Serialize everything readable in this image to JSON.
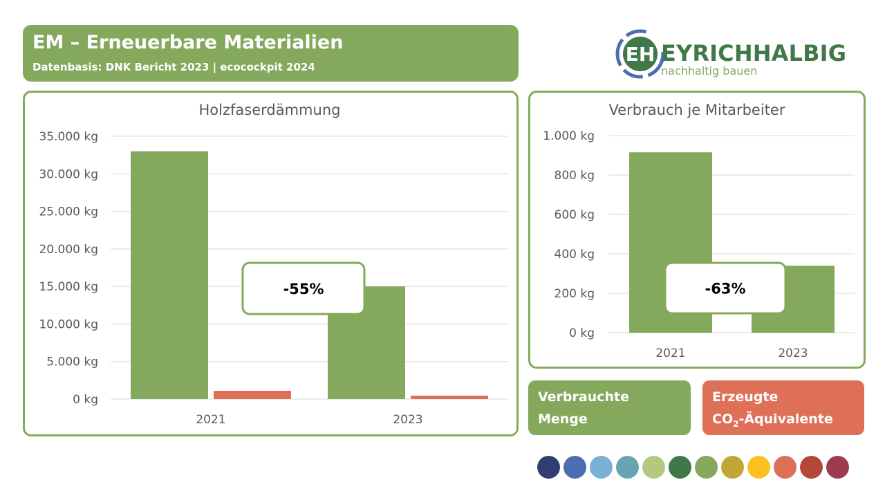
{
  "header": {
    "title": "EM – Erneuerbare Materialien",
    "subtitle": "Datenbasis: DNK Bericht 2023 | ecocockpit 2024"
  },
  "logo": {
    "brand": "EYRICH HALBIG",
    "tagline": "nachhaltig bauen"
  },
  "colors": {
    "green": "#84a85c",
    "red": "#de7058",
    "palette": [
      "#2f3d72",
      "#4d6db3",
      "#7aafd6",
      "#69a4b5",
      "#b4c97f",
      "#407849",
      "#84a85c",
      "#c1a536",
      "#fbc121",
      "#de7058",
      "#b5473a",
      "#9c3a4e"
    ]
  },
  "legend": {
    "consumed": "Verbrauchte Menge",
    "co2_prefix": "Erzeugte",
    "co2_main": "CO",
    "co2_sub": "2",
    "co2_suffix": "-Äquivalente"
  },
  "chart_data": [
    {
      "type": "bar",
      "title": "Holzfaserdämmung",
      "categories": [
        "2021",
        "2023"
      ],
      "ylim": [
        0,
        35000
      ],
      "yticks": [
        "0 kg",
        "5.000 kg",
        "10.000 kg",
        "15.000 kg",
        "20.000 kg",
        "25.000 kg",
        "30.000 kg",
        "35.000 kg"
      ],
      "series": [
        {
          "values": [
            33000,
            15000
          ],
          "color": "#84a85c"
        },
        {
          "values": [
            1100,
            450
          ],
          "color": "#de7058"
        }
      ],
      "annotation": "-55%",
      "grid": true
    },
    {
      "type": "bar",
      "title": "Verbrauch je Mitarbeiter",
      "categories": [
        "2021",
        "2023"
      ],
      "ylim": [
        0,
        1000
      ],
      "yticks": [
        "0 kg",
        "200 kg",
        "400 kg",
        "600 kg",
        "800 kg",
        "1.000 kg"
      ],
      "series": [
        {
          "values": [
            915,
            340
          ],
          "color": "#84a85c"
        }
      ],
      "annotation": "-63%",
      "grid": true
    }
  ]
}
